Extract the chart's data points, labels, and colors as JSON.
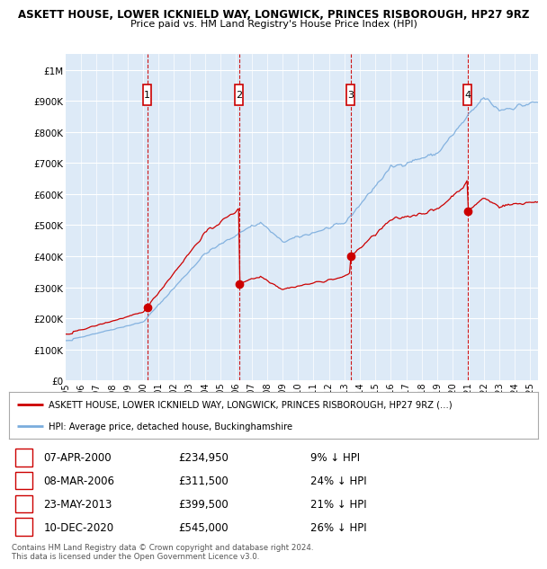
{
  "title_line1": "ASKETT HOUSE, LOWER ICKNIELD WAY, LONGWICK, PRINCES RISBOROUGH, HP27 9RZ",
  "title_line2": "Price paid vs. HM Land Registry's House Price Index (HPI)",
  "yticks": [
    0,
    100000,
    200000,
    300000,
    400000,
    500000,
    600000,
    700000,
    800000,
    900000,
    1000000
  ],
  "ytick_labels": [
    "£0",
    "£100K",
    "£200K",
    "£300K",
    "£400K",
    "£500K",
    "£600K",
    "£700K",
    "£800K",
    "£900K",
    "£1M"
  ],
  "sales": [
    {
      "date_str": "07-APR-2000",
      "date_x": 2000.27,
      "price": 234950,
      "label": "1"
    },
    {
      "date_str": "08-MAR-2006",
      "date_x": 2006.19,
      "price": 311500,
      "label": "2"
    },
    {
      "date_str": "23-MAY-2013",
      "date_x": 2013.39,
      "price": 399500,
      "label": "3"
    },
    {
      "date_str": "10-DEC-2020",
      "date_x": 2020.94,
      "price": 545000,
      "label": "4"
    }
  ],
  "sale_pct": [
    "9% ↓ HPI",
    "24% ↓ HPI",
    "21% ↓ HPI",
    "26% ↓ HPI"
  ],
  "hpi_color": "#7aacdd",
  "sale_color": "#cc0000",
  "background_color": "#ddeaf7",
  "plot_bg": "#ffffff",
  "legend_label_sale": "ASKETT HOUSE, LOWER ICKNIELD WAY, LONGWICK, PRINCES RISBOROUGH, HP27 9RZ (...)",
  "legend_label_hpi": "HPI: Average price, detached house, Buckinghamshire",
  "footer": "Contains HM Land Registry data © Crown copyright and database right 2024.\nThis data is licensed under the Open Government Licence v3.0.",
  "xlim": [
    1995.0,
    2025.5
  ],
  "ylim": [
    0,
    1050000
  ],
  "fig_width": 6.0,
  "fig_height": 6.2,
  "dpi": 100
}
